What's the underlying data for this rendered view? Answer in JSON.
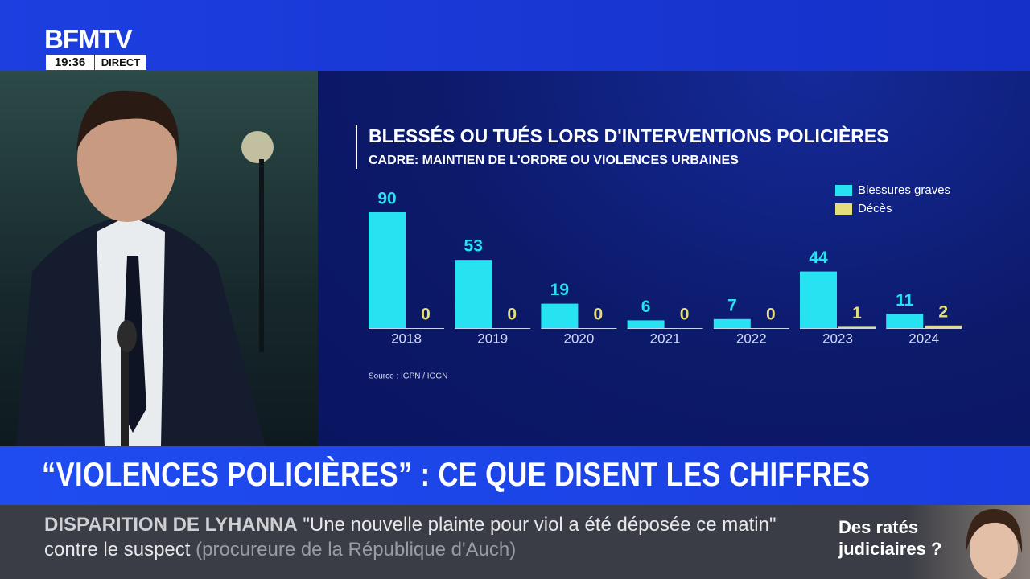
{
  "header": {
    "logo": "BFMTV",
    "time": "19:36",
    "live": "DIRECT"
  },
  "chart_data": {
    "type": "bar",
    "title": "BLESSÉS OU TUÉS LORS D'INTERVENTIONS POLICIÈRES",
    "subtitle": "CADRE: MAINTIEN DE L'ORDRE OU VIOLENCES URBAINES",
    "source": "Source : IGPN / IGGN",
    "categories": [
      "2018",
      "2019",
      "2020",
      "2021",
      "2022",
      "2023",
      "2024"
    ],
    "series": [
      {
        "name": "Blessures graves",
        "color": "#27e3f2",
        "values": [
          90,
          53,
          19,
          6,
          7,
          44,
          11
        ]
      },
      {
        "name": "Décès",
        "color": "#e4df7c",
        "values": [
          0,
          0,
          0,
          0,
          0,
          1,
          2
        ]
      }
    ],
    "legend": "top-right"
  },
  "banner": {
    "headline": "“VIOLENCES POLICIÈRES” : CE QUE DISENT LES CHIFFRES"
  },
  "ticker": {
    "topic": "DISPARITION DE LYHANNA",
    "quote": "\"Une nouvelle plainte pour viol a été déposée ce matin\" contre le suspect",
    "attribution": "(procureure de la République d'Auch)"
  },
  "side_box": {
    "text": "Des ratés judiciaires ?"
  }
}
